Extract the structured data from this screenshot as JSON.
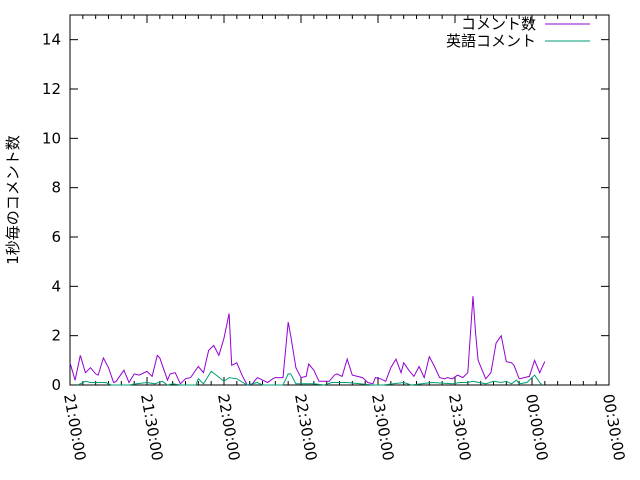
{
  "chart_data": {
    "type": "line",
    "title": "",
    "xlabel": "",
    "ylabel": "1秒毎のコメント数",
    "xlim": [
      "21:00:00",
      "00:30:00"
    ],
    "ylim": [
      0,
      15
    ],
    "x_ticks": [
      "21:00:00",
      "21:30:00",
      "22:00:00",
      "22:30:00",
      "23:00:00",
      "23:30:00",
      "00:00:00",
      "00:30:00"
    ],
    "y_ticks": [
      "0",
      "2",
      "4",
      "6",
      "8",
      "10",
      "12",
      "14"
    ],
    "grid": false,
    "legend_position": "top-right",
    "series": [
      {
        "name": "コメント数",
        "color": "#9400d3",
        "x": [
          "21:00",
          "21:02",
          "21:04",
          "21:06",
          "21:08",
          "21:10",
          "21:11",
          "21:13",
          "21:15",
          "21:17",
          "21:18",
          "21:21",
          "21:23",
          "21:25",
          "21:27",
          "21:30",
          "21:32",
          "21:34",
          "21:35",
          "21:38",
          "21:39",
          "21:41",
          "21:43",
          "21:45",
          "21:47",
          "21:50",
          "21:52",
          "21:54",
          "21:56",
          "21:58",
          "22:00",
          "22:02",
          "22:03",
          "22:05",
          "22:07",
          "22:09",
          "22:11",
          "22:13",
          "22:15",
          "22:17",
          "22:19",
          "22:20",
          "22:23",
          "22:25",
          "22:26",
          "22:28",
          "22:30",
          "22:32",
          "22:33",
          "22:35",
          "22:37",
          "22:41",
          "22:43",
          "22:44",
          "22:46",
          "22:48",
          "22:50",
          "22:52",
          "22:54",
          "22:56",
          "22:58",
          "22:59",
          "23:01",
          "23:03",
          "23:05",
          "23:07",
          "23:09",
          "23:10",
          "23:12",
          "23:14",
          "23:16",
          "23:18",
          "23:20",
          "23:22",
          "23:24",
          "23:26",
          "23:27",
          "23:29",
          "23:31",
          "23:33",
          "23:35",
          "23:37",
          "23:38",
          "23:39",
          "23:41",
          "23:42",
          "23:44",
          "23:46",
          "23:48",
          "23:50",
          "23:52",
          "23:53",
          "23:55",
          "23:57",
          "23:59",
          "00:01",
          "00:03",
          "00:05"
        ],
        "y": [
          0.9,
          0.2,
          1.2,
          0.5,
          0.7,
          0.45,
          0.4,
          1.1,
          0.7,
          0.1,
          0.15,
          0.6,
          0.1,
          0.45,
          0.4,
          0.55,
          0.35,
          1.2,
          1.1,
          0.2,
          0.45,
          0.5,
          0.05,
          0.25,
          0.3,
          0.75,
          0.5,
          1.4,
          1.6,
          1.2,
          1.9,
          2.9,
          0.8,
          0.9,
          0.4,
          0,
          0.05,
          0.3,
          0.2,
          0.1,
          0.25,
          0.3,
          0.3,
          2.55,
          2.0,
          0.7,
          0.3,
          0.35,
          0.85,
          0.6,
          0.15,
          0.15,
          0.4,
          0.45,
          0.35,
          1.05,
          0.4,
          0.35,
          0.3,
          0.1,
          0.05,
          0.3,
          0.25,
          0.15,
          0.7,
          1.05,
          0.5,
          0.9,
          0.6,
          0.35,
          0.75,
          0.3,
          1.15,
          0.75,
          0.3,
          0.25,
          0.3,
          0.25,
          0.4,
          0.3,
          0.5,
          3.6,
          2.15,
          1.0,
          0.5,
          0.25,
          0.5,
          1.7,
          2.0,
          0.95,
          0.9,
          0.8,
          0.25,
          0.3,
          0.35,
          1.0,
          0.5,
          0.95
        ]
      },
      {
        "name": "英語コメント",
        "color": "#009e73",
        "x": [
          "21:03",
          "21:06",
          "21:08",
          "21:14",
          "21:16",
          "21:23",
          "21:26",
          "21:30",
          "21:33",
          "21:36",
          "21:38",
          "21:40",
          "21:43",
          "21:49",
          "21:50",
          "21:52",
          "21:55",
          "21:57",
          "22:00",
          "22:02",
          "22:05",
          "22:09",
          "22:13",
          "22:15",
          "22:23",
          "22:25",
          "22:26",
          "22:28",
          "22:32",
          "22:35",
          "22:39",
          "22:42",
          "22:45",
          "22:48",
          "22:53",
          "22:58",
          "23:02",
          "23:06",
          "23:10",
          "23:13",
          "23:17",
          "23:21",
          "23:29",
          "23:32",
          "23:35",
          "23:37",
          "23:42",
          "23:45",
          "23:48",
          "23:50",
          "23:52",
          "23:54",
          "23:55",
          "23:58",
          "00:01",
          "00:03",
          "00:04"
        ],
        "y": [
          0,
          0.15,
          0.1,
          0.1,
          0,
          0,
          0.05,
          0.1,
          0.05,
          0.15,
          0,
          0.05,
          0,
          0,
          0.25,
          0.05,
          0.55,
          0.4,
          0.15,
          0.3,
          0.25,
          0,
          0.1,
          0,
          0,
          0.45,
          0.45,
          0.05,
          0.05,
          0.05,
          0,
          0.1,
          0.1,
          0.1,
          0.05,
          0,
          0,
          0.05,
          0.1,
          0,
          0.05,
          0.1,
          0.05,
          0.1,
          0.1,
          0.15,
          0.05,
          0.15,
          0.1,
          0.15,
          0.05,
          0.2,
          0.05,
          0.1,
          0.4,
          0.1,
          0
        ]
      }
    ]
  }
}
